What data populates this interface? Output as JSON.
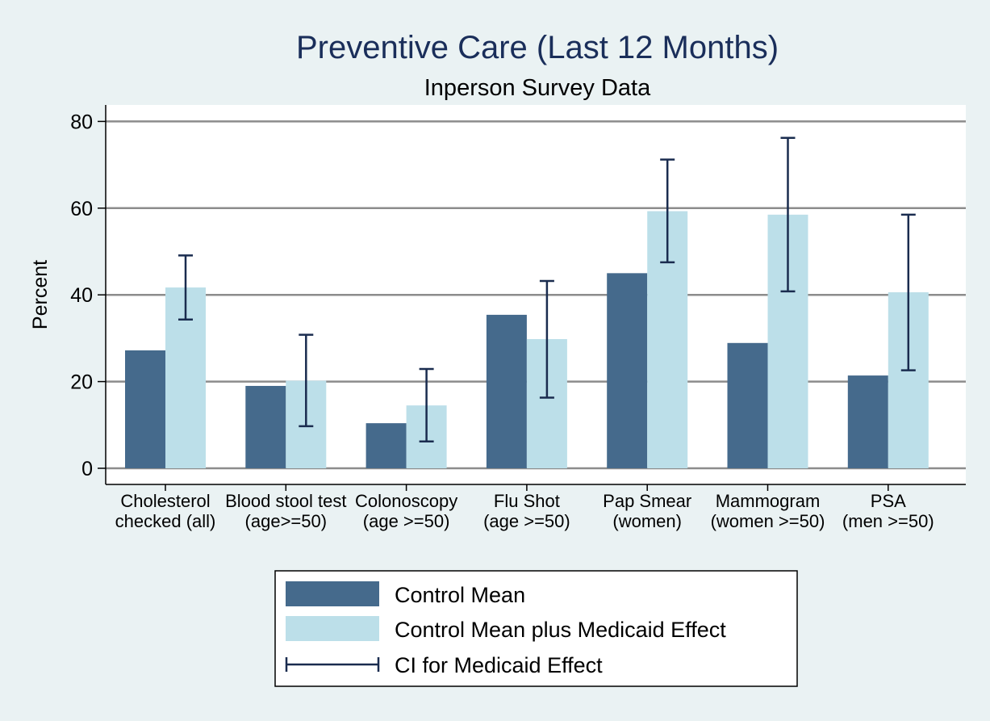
{
  "chart_data": {
    "type": "bar",
    "title": "Preventive Care (Last 12 Months)",
    "subtitle": "Inperson Survey Data",
    "ylabel": "Percent",
    "xlabel": "",
    "ylim": [
      0,
      83
    ],
    "yticks": [
      0,
      20,
      40,
      60,
      80
    ],
    "grid": true,
    "legend_position": "bottom",
    "categories": [
      [
        "Cholesterol",
        "checked (all)"
      ],
      [
        "Blood stool test",
        "(age>=50)"
      ],
      [
        "Colonoscopy",
        "(age >=50)"
      ],
      [
        "Flu Shot",
        "(age >=50)"
      ],
      [
        "Pap Smear",
        "(women)"
      ],
      [
        "Mammogram",
        "(women >=50)"
      ],
      [
        "PSA",
        "(men >=50)"
      ]
    ],
    "series": [
      {
        "name": "Control Mean",
        "color": "#456a8c",
        "values": [
          27.2,
          19.0,
          10.4,
          35.4,
          45.0,
          28.9,
          21.4
        ]
      },
      {
        "name": "Control Mean plus Medicaid Effect",
        "color": "#bcdfe9",
        "values": [
          41.7,
          20.2,
          14.5,
          29.8,
          59.3,
          58.5,
          40.6
        ]
      }
    ],
    "error_bars": {
      "name": "CI for Medicaid Effect",
      "color": "#1a2c4f",
      "series": "Control Mean plus Medicaid Effect",
      "lower": [
        34.3,
        9.7,
        6.2,
        16.3,
        47.5,
        40.8,
        22.6
      ],
      "upper": [
        49.1,
        30.8,
        22.9,
        43.2,
        71.2,
        76.2,
        58.5
      ]
    }
  },
  "colors": {
    "background": "#eaf2f3",
    "plot_background": "#ffffff",
    "gridline": "#8c8c8c",
    "title": "#1a2e5a"
  }
}
